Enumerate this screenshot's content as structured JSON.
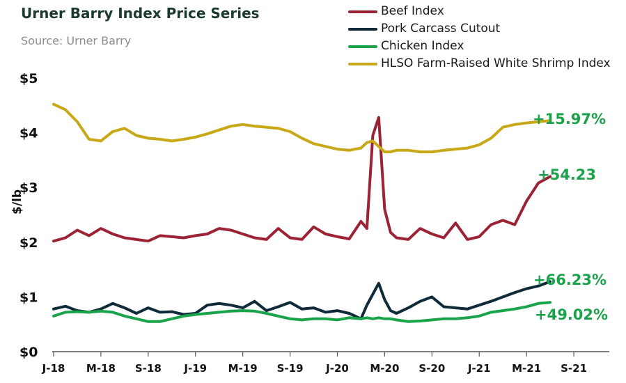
{
  "header": {
    "title": "Urner Barry Index Price Series",
    "source": "Source: Urner Barry"
  },
  "legend": [
    {
      "label": "Beef Index",
      "color": "#9b2335"
    },
    {
      "label": "Pork Carcass Cutout",
      "color": "#0f2a38"
    },
    {
      "label": "Chicken Index",
      "color": "#1aa34a"
    },
    {
      "label": "HLSO Farm-Raised White Shrimp Index",
      "color": "#c9a818"
    }
  ],
  "chart_data": {
    "type": "line",
    "title": "Urner Barry Index Price Series",
    "xlabel": "",
    "ylabel": "$/lb",
    "ylim": [
      0,
      5
    ],
    "y_ticks": [
      "$0",
      "$1",
      "$2",
      "$3",
      "$4",
      "$5"
    ],
    "x_ticks": [
      "J-18",
      "M-18",
      "S-18",
      "J-19",
      "M-19",
      "S-19",
      "J-20",
      "M-20",
      "S-20",
      "J-21",
      "M-21",
      "S-21"
    ],
    "x_range": [
      "2018-01",
      "2021-12"
    ],
    "grid": false,
    "legend_position": "top-right",
    "series": [
      {
        "name": "Beef Index",
        "color": "#9b2335",
        "end_label": "+54.23",
        "x": [
          "2018-01",
          "2018-02",
          "2018-03",
          "2018-04",
          "2018-05",
          "2018-06",
          "2018-07",
          "2018-08",
          "2018-09",
          "2018-10",
          "2018-11",
          "2018-12",
          "2019-01",
          "2019-02",
          "2019-03",
          "2019-04",
          "2019-05",
          "2019-06",
          "2019-07",
          "2019-08",
          "2019-09",
          "2019-10",
          "2019-11",
          "2019-12",
          "2020-01",
          "2020-02",
          "2020-03",
          "2020-03.5",
          "2020-04",
          "2020-04.5",
          "2020-05",
          "2020-05.5",
          "2020-06",
          "2020-07",
          "2020-08",
          "2020-09",
          "2020-10",
          "2020-11",
          "2020-12",
          "2021-01",
          "2021-02",
          "2021-03",
          "2021-04",
          "2021-05",
          "2021-06",
          "2021-07"
        ],
        "values": [
          2.02,
          2.08,
          2.22,
          2.12,
          2.25,
          2.15,
          2.08,
          2.05,
          2.02,
          2.12,
          2.1,
          2.08,
          2.12,
          2.15,
          2.25,
          2.22,
          2.15,
          2.08,
          2.05,
          2.25,
          2.08,
          2.05,
          2.28,
          2.15,
          2.1,
          2.06,
          2.38,
          2.25,
          3.95,
          4.28,
          2.6,
          2.18,
          2.08,
          2.05,
          2.25,
          2.15,
          2.08,
          2.35,
          2.05,
          2.1,
          2.32,
          2.4,
          2.32,
          2.75,
          3.08,
          3.2
        ]
      },
      {
        "name": "Pork Carcass Cutout",
        "color": "#0f2a38",
        "end_label": "+66.23%",
        "x": [
          "2018-01",
          "2018-02",
          "2018-03",
          "2018-04",
          "2018-05",
          "2018-06",
          "2018-07",
          "2018-08",
          "2018-09",
          "2018-10",
          "2018-11",
          "2018-12",
          "2019-01",
          "2019-02",
          "2019-03",
          "2019-04",
          "2019-05",
          "2019-06",
          "2019-07",
          "2019-08",
          "2019-09",
          "2019-10",
          "2019-11",
          "2019-12",
          "2020-01",
          "2020-02",
          "2020-03",
          "2020-03.5",
          "2020-04",
          "2020-04.5",
          "2020-05",
          "2020-05.5",
          "2020-06",
          "2020-07",
          "2020-08",
          "2020-09",
          "2020-10",
          "2020-11",
          "2020-12",
          "2021-01",
          "2021-02",
          "2021-03",
          "2021-04",
          "2021-05",
          "2021-06",
          "2021-07"
        ],
        "values": [
          0.78,
          0.83,
          0.75,
          0.72,
          0.78,
          0.88,
          0.8,
          0.7,
          0.8,
          0.72,
          0.73,
          0.68,
          0.7,
          0.85,
          0.88,
          0.85,
          0.8,
          0.92,
          0.75,
          0.82,
          0.9,
          0.78,
          0.8,
          0.72,
          0.75,
          0.7,
          0.6,
          0.85,
          1.05,
          1.25,
          0.95,
          0.75,
          0.7,
          0.8,
          0.92,
          1.0,
          0.82,
          0.8,
          0.78,
          0.85,
          0.92,
          1.0,
          1.08,
          1.15,
          1.2,
          1.28
        ]
      },
      {
        "name": "Chicken Index",
        "color": "#1aa34a",
        "end_label": "+49.02%",
        "x": [
          "2018-01",
          "2018-02",
          "2018-03",
          "2018-04",
          "2018-05",
          "2018-06",
          "2018-07",
          "2018-08",
          "2018-09",
          "2018-10",
          "2018-11",
          "2018-12",
          "2019-01",
          "2019-02",
          "2019-03",
          "2019-04",
          "2019-05",
          "2019-06",
          "2019-07",
          "2019-08",
          "2019-09",
          "2019-10",
          "2019-11",
          "2019-12",
          "2020-01",
          "2020-02",
          "2020-03",
          "2020-03.5",
          "2020-04",
          "2020-04.5",
          "2020-05",
          "2020-05.5",
          "2020-06",
          "2020-07",
          "2020-08",
          "2020-09",
          "2020-10",
          "2020-11",
          "2020-12",
          "2021-01",
          "2021-02",
          "2021-03",
          "2021-04",
          "2021-05",
          "2021-06",
          "2021-07"
        ],
        "values": [
          0.65,
          0.72,
          0.73,
          0.72,
          0.74,
          0.72,
          0.65,
          0.6,
          0.55,
          0.55,
          0.6,
          0.65,
          0.68,
          0.7,
          0.72,
          0.74,
          0.75,
          0.74,
          0.7,
          0.65,
          0.6,
          0.58,
          0.6,
          0.6,
          0.58,
          0.62,
          0.6,
          0.62,
          0.6,
          0.62,
          0.6,
          0.6,
          0.58,
          0.55,
          0.56,
          0.58,
          0.6,
          0.6,
          0.62,
          0.65,
          0.72,
          0.75,
          0.78,
          0.82,
          0.88,
          0.9
        ]
      },
      {
        "name": "HLSO Farm-Raised White Shrimp Index",
        "color": "#c9a818",
        "end_label": "+15.97%",
        "x": [
          "2018-01",
          "2018-02",
          "2018-03",
          "2018-04",
          "2018-05",
          "2018-06",
          "2018-07",
          "2018-08",
          "2018-09",
          "2018-10",
          "2018-11",
          "2018-12",
          "2019-01",
          "2019-02",
          "2019-03",
          "2019-04",
          "2019-05",
          "2019-06",
          "2019-07",
          "2019-08",
          "2019-09",
          "2019-10",
          "2019-11",
          "2019-12",
          "2020-01",
          "2020-02",
          "2020-03",
          "2020-03.5",
          "2020-04",
          "2020-04.5",
          "2020-05",
          "2020-05.5",
          "2020-06",
          "2020-07",
          "2020-08",
          "2020-09",
          "2020-10",
          "2020-11",
          "2020-12",
          "2021-01",
          "2021-02",
          "2021-03",
          "2021-04",
          "2021-05",
          "2021-06",
          "2021-07"
        ],
        "values": [
          4.52,
          4.42,
          4.2,
          3.88,
          3.85,
          4.02,
          4.08,
          3.95,
          3.9,
          3.88,
          3.85,
          3.88,
          3.92,
          3.98,
          4.05,
          4.12,
          4.15,
          4.12,
          4.1,
          4.08,
          4.02,
          3.9,
          3.8,
          3.75,
          3.7,
          3.68,
          3.72,
          3.82,
          3.85,
          3.75,
          3.65,
          3.65,
          3.68,
          3.68,
          3.65,
          3.65,
          3.68,
          3.7,
          3.72,
          3.78,
          3.9,
          4.1,
          4.15,
          4.18,
          4.2,
          4.22
        ]
      }
    ]
  }
}
